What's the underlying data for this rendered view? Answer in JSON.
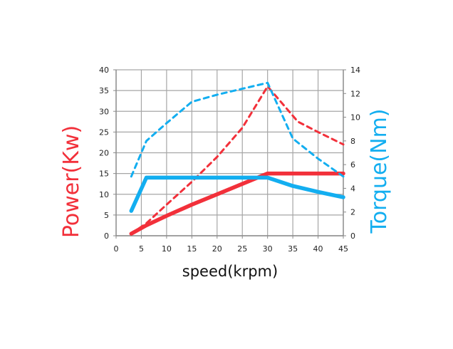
{
  "chart_data": {
    "type": "line",
    "xlabel": "speed(krpm)",
    "ylabel_left": "Power(Kw)",
    "ylabel_right": "Torque(Nm)",
    "xlim": [
      0,
      45
    ],
    "ylim_left": [
      0,
      40
    ],
    "ylim_right": [
      0,
      14
    ],
    "x_ticks": [
      0,
      5,
      10,
      15,
      20,
      25,
      30,
      35,
      40,
      45
    ],
    "y_left_ticks": [
      0,
      5,
      10,
      15,
      20,
      25,
      30,
      35,
      40
    ],
    "y_right_ticks": [
      0,
      2,
      4,
      6,
      8,
      10,
      12,
      14
    ],
    "grid": true,
    "series": [
      {
        "axis": "left",
        "color": "#f2303a",
        "style": "solid",
        "x": [
          3,
          6,
          10,
          15,
          20,
          25,
          30,
          35,
          40,
          45
        ],
        "y": [
          0.5,
          2.5,
          4.8,
          7.5,
          10,
          12.5,
          15,
          15,
          15,
          15
        ]
      },
      {
        "axis": "left",
        "color": "#f2303a",
        "style": "dashed",
        "x": [
          3,
          6,
          10,
          15,
          20,
          25,
          30,
          36,
          40,
          45
        ],
        "y": [
          0.5,
          3,
          7.5,
          13,
          19,
          26,
          36,
          27.5,
          25,
          22
        ]
      },
      {
        "axis": "right",
        "color": "#13aef0",
        "style": "solid",
        "x": [
          3,
          6,
          10,
          15,
          20,
          25,
          30,
          35,
          40,
          45
        ],
        "y": [
          2.1,
          4.9,
          4.9,
          4.9,
          4.9,
          4.9,
          4.9,
          4.2,
          3.7,
          3.25
        ]
      },
      {
        "axis": "right",
        "color": "#13aef0",
        "style": "dashed",
        "x": [
          3,
          6,
          10,
          15,
          20,
          25,
          30,
          35,
          40,
          45
        ],
        "y": [
          5,
          8,
          9.5,
          11.3,
          11.9,
          12.4,
          12.9,
          8.2,
          6.5,
          5
        ]
      }
    ]
  }
}
